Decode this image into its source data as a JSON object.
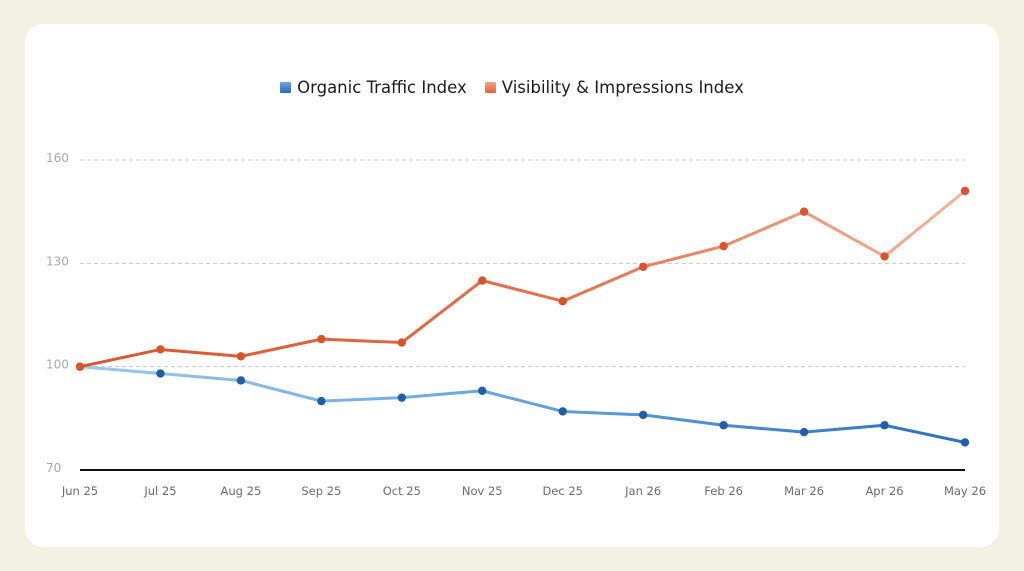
{
  "colors": {
    "page_bg": "#f3f0e4",
    "card_bg": "#ffffff",
    "series_blue_dark": "#1f5fa8",
    "series_blue_light": "#8ec0ea",
    "series_orange_dark": "#d9542a",
    "series_orange_light": "#f3b49b",
    "grid": "#c8c8c8",
    "axis": "#111111"
  },
  "legend": {
    "items": [
      {
        "label": "Organic Traffic Index",
        "icon": "blue-square-icon",
        "color": "#3d7fcf"
      },
      {
        "label": "Visibility & Impressions Index",
        "icon": "orange-square-icon",
        "color": "#ec7a52"
      }
    ]
  },
  "chart_data": {
    "type": "line",
    "title": "",
    "xlabel": "",
    "ylabel": "",
    "categories": [
      "Jun 25",
      "Jul 25",
      "Aug 25",
      "Sep 25",
      "Oct 25",
      "Nov 25",
      "Dec 25",
      "Jan 26",
      "Feb 26",
      "Mar 26",
      "Apr 26",
      "May 26"
    ],
    "ylim": [
      70,
      160
    ],
    "yticks": [
      70,
      100,
      130,
      160
    ],
    "grid": true,
    "legend_position": "top-center",
    "series": [
      {
        "name": "Organic Traffic Index",
        "values": [
          100,
          98,
          96,
          90,
          91,
          93,
          87,
          86,
          83,
          81,
          83,
          78
        ]
      },
      {
        "name": "Visibility & Impressions Index",
        "values": [
          100,
          105,
          103,
          108,
          107,
          125,
          119,
          129,
          135,
          145,
          132,
          151
        ]
      }
    ]
  }
}
